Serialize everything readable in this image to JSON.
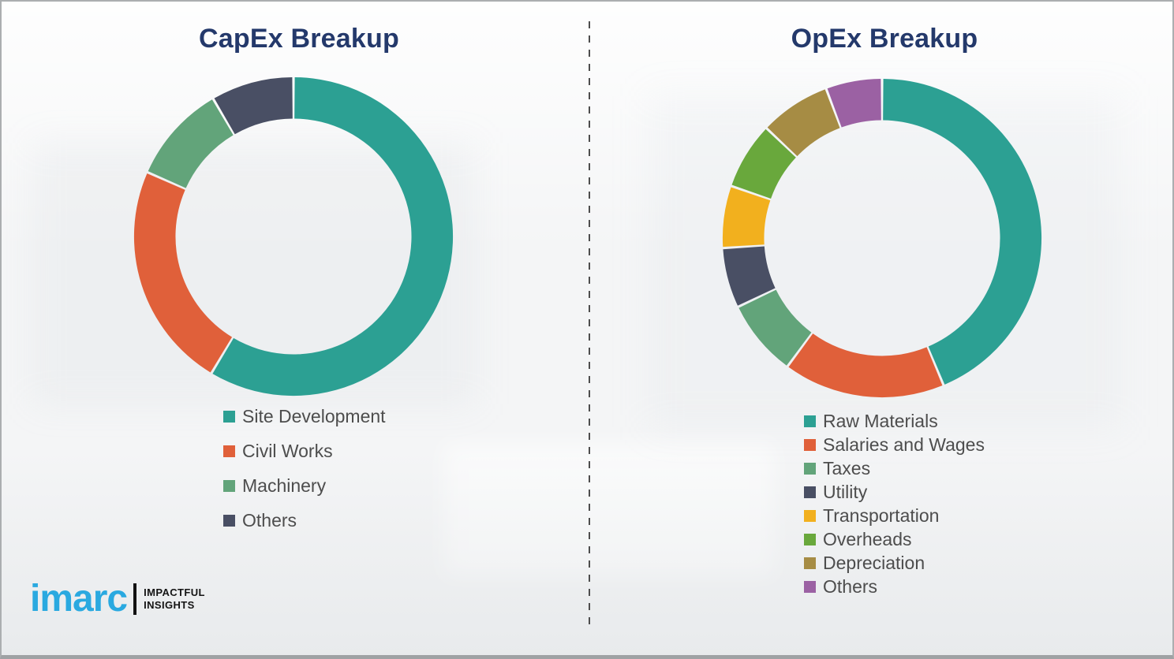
{
  "chart_data": [
    {
      "type": "pie",
      "variant": "donut",
      "title": "CapEx Breakup",
      "categories": [
        "Site Development",
        "Civil Works",
        "Machinery",
        "Others"
      ],
      "values": [
        58.6,
        23.0,
        10.0,
        8.4
      ],
      "values_note": "percent of ring, estimated from arc angles; no numeric labels shown in image",
      "colors": [
        "#2ca093",
        "#e0603a",
        "#62a47a",
        "#494f64"
      ],
      "start_angle_deg": 0,
      "direction": "clockwise",
      "inner_radius_ratio": 0.74,
      "legend_position": "below"
    },
    {
      "type": "pie",
      "variant": "donut",
      "title": "OpEx Breakup",
      "categories": [
        "Raw Materials",
        "Salaries and Wages",
        "Taxes",
        "Utility",
        "Transportation",
        "Overheads",
        "Depreciation",
        "Others"
      ],
      "values": [
        43.7,
        16.4,
        7.8,
        6.1,
        6.3,
        6.8,
        7.2,
        5.7
      ],
      "values_note": "percent of ring, estimated from arc angles; no numeric labels shown in image",
      "colors": [
        "#2ca093",
        "#e0603a",
        "#62a47a",
        "#494f64",
        "#f2b01e",
        "#69a83c",
        "#a68c44",
        "#9b61a3"
      ],
      "start_angle_deg": 0,
      "direction": "clockwise",
      "inner_radius_ratio": 0.74,
      "legend_position": "below"
    }
  ],
  "logo": {
    "brand": "imarc",
    "tagline_line1": "IMPACTFUL",
    "tagline_line2": "INSIGHTS",
    "brand_color": "#2aa9e0",
    "tagline_color": "#141414"
  },
  "colors": {
    "title_text": "#24396b",
    "legend_text": "#4d4d4d",
    "divider": "#4d4d4d",
    "background": "#f4f5f6"
  }
}
